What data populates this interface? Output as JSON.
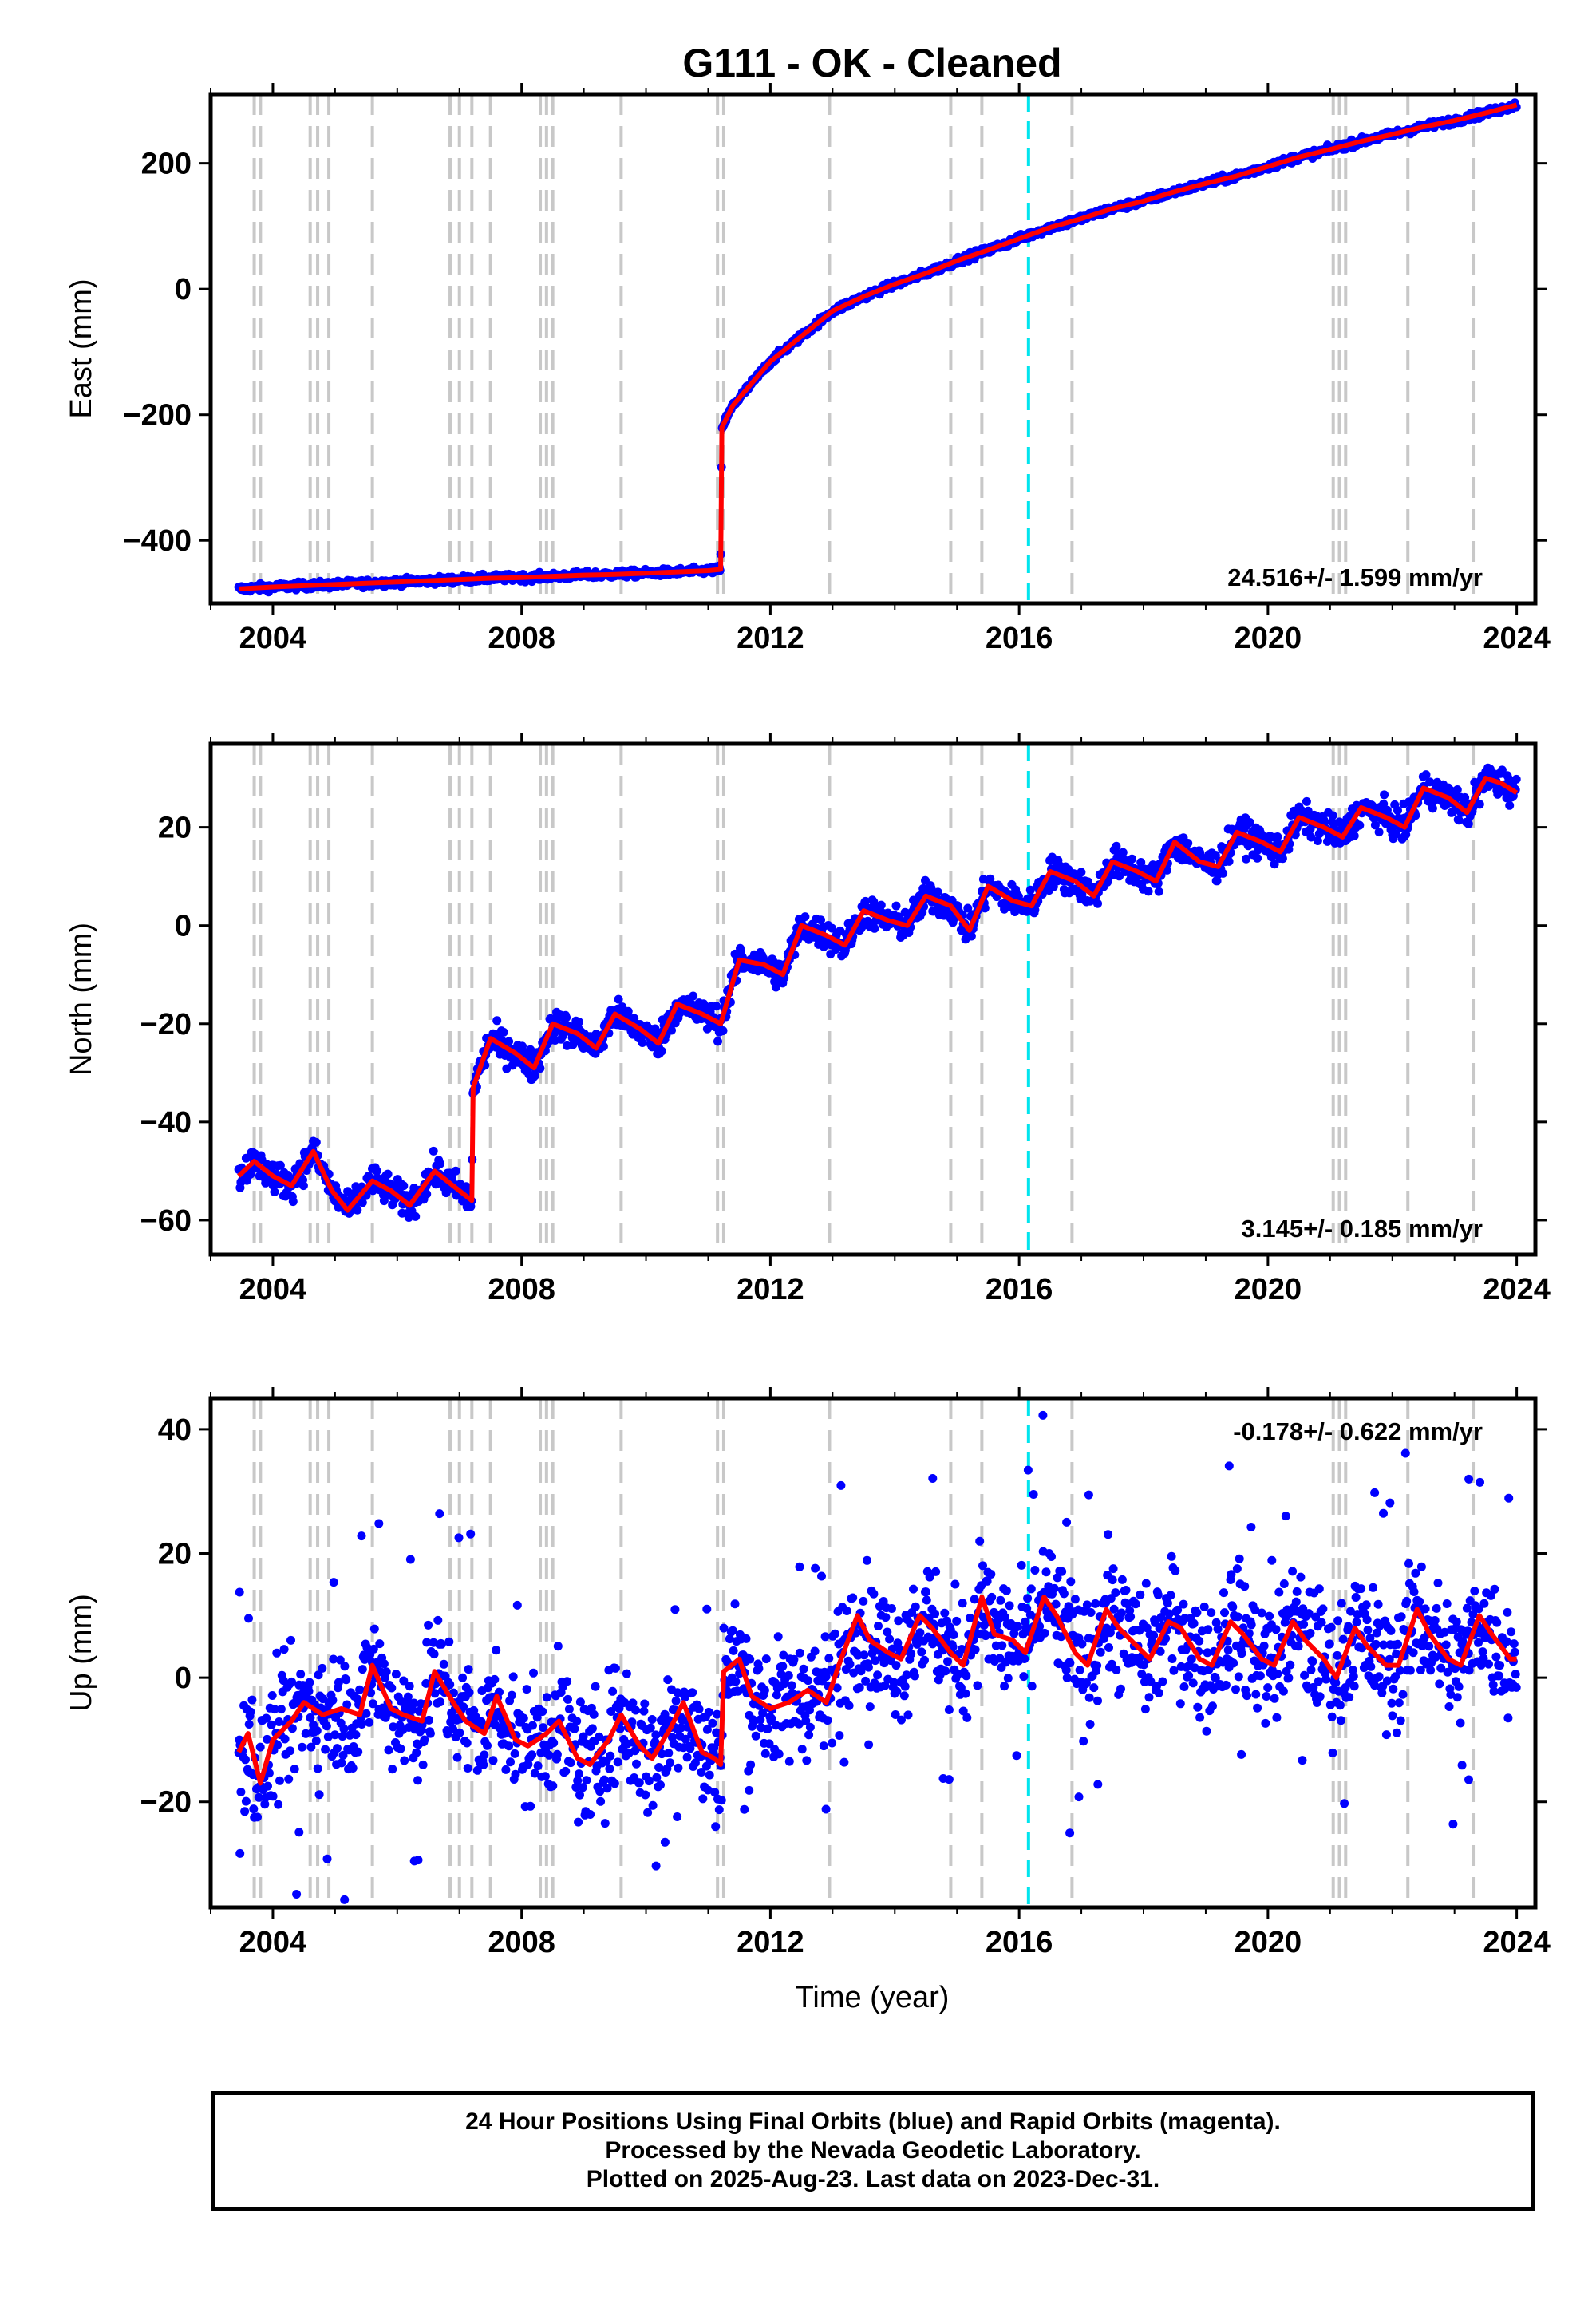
{
  "chart_data": [
    {
      "type": "scatter",
      "title": "G111  - OK - Cleaned",
      "ylabel": "East (mm)",
      "xlabel": "",
      "xlim": [
        2003.0,
        2024.3
      ],
      "ylim": [
        -500,
        310
      ],
      "xticks": [
        2004,
        2008,
        2012,
        2016,
        2020,
        2024
      ],
      "yticks": [
        -400,
        -200,
        0,
        200
      ],
      "yticklabels": [
        "−400",
        "−200",
        "0",
        "200"
      ],
      "rate_label": "24.516+/- 1.599 mm/yr",
      "rate_position": "bottom-right",
      "series": [
        {
          "role": "observations",
          "color": "#0000ff",
          "x": [
            2003.45,
            2004.0,
            2004.5,
            2005.0,
            2005.5,
            2006.0,
            2006.5,
            2007.0,
            2007.5,
            2008.0,
            2008.5,
            2009.0,
            2009.5,
            2010.0,
            2010.5,
            2011.0,
            2011.2,
            2011.22,
            2011.4,
            2011.7,
            2012.0,
            2012.5,
            2013.0,
            2013.5,
            2014.0,
            2014.5,
            2015.0,
            2015.5,
            2016.0,
            2016.5,
            2017.0,
            2017.5,
            2018.0,
            2018.5,
            2019.0,
            2019.5,
            2020.0,
            2020.5,
            2021.0,
            2021.5,
            2022.0,
            2022.5,
            2023.0,
            2023.5,
            2024.0
          ],
          "y": [
            -477,
            -474,
            -472,
            -470,
            -468,
            -466,
            -464,
            -462,
            -460,
            -459,
            -457,
            -455,
            -454,
            -452,
            -450,
            -448,
            -446,
            -220,
            -185,
            -150,
            -115,
            -75,
            -35,
            -12,
            8,
            25,
            45,
            62,
            80,
            98,
            112,
            128,
            140,
            155,
            168,
            180,
            195,
            210,
            222,
            235,
            246,
            258,
            268,
            280,
            293
          ]
        },
        {
          "role": "model",
          "color": "#ff0000",
          "x": [
            2003.45,
            2004.0,
            2004.5,
            2005.0,
            2005.5,
            2006.0,
            2006.5,
            2007.0,
            2007.5,
            2008.0,
            2008.5,
            2009.0,
            2009.5,
            2010.0,
            2010.5,
            2011.0,
            2011.2,
            2011.22,
            2011.4,
            2011.7,
            2012.0,
            2012.5,
            2013.0,
            2013.5,
            2014.0,
            2014.5,
            2015.0,
            2015.5,
            2016.0,
            2016.5,
            2017.0,
            2017.5,
            2018.0,
            2018.5,
            2019.0,
            2019.5,
            2020.0,
            2020.5,
            2021.0,
            2021.5,
            2022.0,
            2022.5,
            2023.0,
            2023.5,
            2024.0
          ],
          "y": [
            -477,
            -474,
            -472,
            -470,
            -468,
            -466,
            -464,
            -462,
            -460,
            -459,
            -457,
            -455,
            -454,
            -452,
            -450,
            -448,
            -446,
            -220,
            -185,
            -150,
            -115,
            -75,
            -35,
            -12,
            8,
            25,
            45,
            62,
            80,
            98,
            112,
            128,
            140,
            155,
            168,
            180,
            195,
            210,
            222,
            235,
            246,
            258,
            268,
            280,
            293
          ]
        }
      ]
    },
    {
      "type": "scatter",
      "title": "",
      "ylabel": "North (mm)",
      "xlabel": "",
      "xlim": [
        2003.0,
        2024.3
      ],
      "ylim": [
        -67,
        37
      ],
      "xticks": [
        2004,
        2008,
        2012,
        2016,
        2020,
        2024
      ],
      "yticks": [
        -60,
        -40,
        -20,
        0,
        20
      ],
      "yticklabels": [
        "−60",
        "−40",
        "−20",
        "0",
        "20"
      ],
      "rate_label": "3.145+/- 0.185 mm/yr",
      "rate_position": "bottom-right",
      "series": [
        {
          "role": "observations",
          "color": "#0000ff",
          "x": [
            2003.45,
            2003.7,
            2004.0,
            2004.3,
            2004.65,
            2004.95,
            2005.2,
            2005.6,
            2005.9,
            2006.2,
            2006.6,
            2006.9,
            2007.2,
            2007.22,
            2007.5,
            2007.9,
            2008.2,
            2008.5,
            2008.9,
            2009.2,
            2009.5,
            2009.9,
            2010.2,
            2010.5,
            2010.9,
            2011.2,
            2011.5,
            2011.9,
            2012.2,
            2012.5,
            2012.9,
            2013.2,
            2013.5,
            2013.9,
            2014.2,
            2014.5,
            2014.9,
            2015.2,
            2015.5,
            2015.9,
            2016.2,
            2016.5,
            2016.9,
            2017.2,
            2017.5,
            2017.9,
            2018.2,
            2018.5,
            2018.9,
            2019.2,
            2019.5,
            2019.9,
            2020.2,
            2020.5,
            2020.9,
            2021.2,
            2021.5,
            2021.9,
            2022.2,
            2022.5,
            2022.9,
            2023.2,
            2023.5,
            2023.75,
            2024.0
          ],
          "y": [
            -51,
            -48,
            -51,
            -53,
            -46,
            -54,
            -58,
            -52,
            -54,
            -57,
            -50,
            -53,
            -56,
            -33,
            -23,
            -26,
            -29,
            -20,
            -22,
            -25,
            -18,
            -21,
            -24,
            -16,
            -18,
            -20,
            -7,
            -8,
            -10,
            0,
            -2,
            -4,
            3,
            1,
            0,
            6,
            4,
            -1,
            8,
            5,
            4,
            11,
            9,
            6,
            13,
            11,
            9,
            17,
            13,
            12,
            19,
            17,
            15,
            22,
            20,
            18,
            24,
            22,
            20,
            28,
            26,
            23,
            30,
            29,
            27
          ]
        },
        {
          "role": "model",
          "color": "#ff0000",
          "x": [
            2003.45,
            2003.7,
            2004.0,
            2004.3,
            2004.65,
            2004.95,
            2005.2,
            2005.6,
            2005.9,
            2006.2,
            2006.6,
            2006.9,
            2007.2,
            2007.22,
            2007.5,
            2007.9,
            2008.2,
            2008.5,
            2008.9,
            2009.2,
            2009.5,
            2009.9,
            2010.2,
            2010.5,
            2010.9,
            2011.2,
            2011.5,
            2011.9,
            2012.2,
            2012.5,
            2012.9,
            2013.2,
            2013.5,
            2013.9,
            2014.2,
            2014.5,
            2014.9,
            2015.2,
            2015.5,
            2015.9,
            2016.2,
            2016.5,
            2016.9,
            2017.2,
            2017.5,
            2017.9,
            2018.2,
            2018.5,
            2018.9,
            2019.2,
            2019.5,
            2019.9,
            2020.2,
            2020.5,
            2020.9,
            2021.2,
            2021.5,
            2021.9,
            2022.2,
            2022.5,
            2022.9,
            2023.2,
            2023.5,
            2023.75,
            2024.0
          ],
          "y": [
            -51,
            -48,
            -51,
            -53,
            -46,
            -54,
            -58,
            -52,
            -54,
            -57,
            -50,
            -53,
            -56,
            -33,
            -23,
            -26,
            -29,
            -20,
            -22,
            -25,
            -18,
            -21,
            -24,
            -16,
            -18,
            -20,
            -7,
            -8,
            -10,
            0,
            -2,
            -4,
            3,
            1,
            0,
            6,
            4,
            -1,
            8,
            5,
            4,
            11,
            9,
            6,
            13,
            11,
            9,
            17,
            13,
            12,
            19,
            17,
            15,
            22,
            20,
            18,
            24,
            22,
            20,
            28,
            26,
            23,
            30,
            29,
            27
          ]
        }
      ]
    },
    {
      "type": "scatter",
      "title": "",
      "ylabel": "Up (mm)",
      "xlabel": "Time (year)",
      "xlim": [
        2003.0,
        2024.3
      ],
      "ylim": [
        -37,
        45
      ],
      "xticks": [
        2004,
        2008,
        2012,
        2016,
        2020,
        2024
      ],
      "yticks": [
        -20,
        0,
        20,
        40
      ],
      "yticklabels": [
        "−20",
        "0",
        "20",
        "40"
      ],
      "rate_label": "-0.178+/- 0.622 mm/yr",
      "rate_position": "top-right",
      "series": [
        {
          "role": "observations",
          "color": "#0000ff",
          "x": [
            2003.45,
            2003.6,
            2003.8,
            2004.0,
            2004.3,
            2004.5,
            2004.8,
            2005.1,
            2005.4,
            2005.6,
            2005.9,
            2006.1,
            2006.4,
            2006.6,
            2006.9,
            2007.1,
            2007.4,
            2007.6,
            2007.9,
            2008.1,
            2008.4,
            2008.6,
            2008.9,
            2009.1,
            2009.4,
            2009.6,
            2009.9,
            2010.1,
            2010.4,
            2010.6,
            2010.9,
            2011.1,
            2011.2,
            2011.25,
            2011.5,
            2011.7,
            2012.0,
            2012.3,
            2012.6,
            2012.9,
            2013.1,
            2013.4,
            2013.6,
            2013.9,
            2014.1,
            2014.4,
            2014.6,
            2014.9,
            2015.1,
            2015.4,
            2015.6,
            2015.9,
            2016.1,
            2016.4,
            2016.6,
            2016.9,
            2017.1,
            2017.4,
            2017.6,
            2017.9,
            2018.1,
            2018.4,
            2018.6,
            2018.9,
            2019.1,
            2019.4,
            2019.6,
            2019.9,
            2020.1,
            2020.4,
            2020.6,
            2020.9,
            2021.1,
            2021.4,
            2021.6,
            2021.9,
            2022.1,
            2022.4,
            2022.6,
            2022.9,
            2023.1,
            2023.4,
            2023.6,
            2023.9,
            2024.0
          ],
          "y": [
            -12,
            -9,
            -17,
            -10,
            -7,
            -4,
            -6,
            -5,
            -6,
            2,
            -5,
            -6,
            -7,
            1,
            -4,
            -7,
            -9,
            -3,
            -10,
            -11,
            -9,
            -7,
            -13,
            -14,
            -10,
            -6,
            -11,
            -13,
            -8,
            -4,
            -12,
            -13,
            -14,
            1,
            3,
            -3,
            -5,
            -4,
            -2,
            -4,
            2,
            10,
            6,
            4,
            3,
            10,
            8,
            4,
            2,
            13,
            7,
            6,
            4,
            13,
            10,
            4,
            2,
            11,
            8,
            5,
            3,
            9,
            8,
            3,
            2,
            9,
            7,
            3,
            2,
            9,
            6,
            3,
            0,
            8,
            5,
            2,
            2,
            11,
            7,
            3,
            2,
            10,
            7,
            3,
            3
          ]
        },
        {
          "role": "model",
          "color": "#ff0000",
          "x": [
            2003.45,
            2003.6,
            2003.8,
            2004.0,
            2004.3,
            2004.5,
            2004.8,
            2005.1,
            2005.4,
            2005.6,
            2005.9,
            2006.1,
            2006.4,
            2006.6,
            2006.9,
            2007.1,
            2007.4,
            2007.6,
            2007.9,
            2008.1,
            2008.4,
            2008.6,
            2008.9,
            2009.1,
            2009.4,
            2009.6,
            2009.9,
            2010.1,
            2010.4,
            2010.6,
            2010.9,
            2011.1,
            2011.2,
            2011.25,
            2011.5,
            2011.7,
            2012.0,
            2012.3,
            2012.6,
            2012.9,
            2013.1,
            2013.4,
            2013.6,
            2013.9,
            2014.1,
            2014.4,
            2014.6,
            2014.9,
            2015.1,
            2015.4,
            2015.6,
            2015.9,
            2016.1,
            2016.4,
            2016.6,
            2016.9,
            2017.1,
            2017.4,
            2017.6,
            2017.9,
            2018.1,
            2018.4,
            2018.6,
            2018.9,
            2019.1,
            2019.4,
            2019.6,
            2019.9,
            2020.1,
            2020.4,
            2020.6,
            2020.9,
            2021.1,
            2021.4,
            2021.6,
            2021.9,
            2022.1,
            2022.4,
            2022.6,
            2022.9,
            2023.1,
            2023.4,
            2023.6,
            2023.9,
            2024.0
          ],
          "y": [
            -12,
            -9,
            -17,
            -10,
            -7,
            -4,
            -6,
            -5,
            -6,
            2,
            -5,
            -6,
            -7,
            1,
            -4,
            -7,
            -9,
            -3,
            -10,
            -11,
            -9,
            -7,
            -13,
            -14,
            -10,
            -6,
            -11,
            -13,
            -8,
            -4,
            -12,
            -13,
            -14,
            1,
            3,
            -3,
            -5,
            -4,
            -2,
            -4,
            2,
            10,
            6,
            4,
            3,
            10,
            8,
            4,
            2,
            13,
            7,
            6,
            4,
            13,
            10,
            4,
            2,
            11,
            8,
            5,
            3,
            9,
            8,
            3,
            2,
            9,
            7,
            3,
            2,
            9,
            6,
            3,
            0,
            8,
            5,
            2,
            2,
            11,
            7,
            3,
            2,
            10,
            7,
            3,
            3
          ]
        }
      ]
    }
  ],
  "offset_lines": {
    "gray_dates": [
      2003.7,
      2003.8,
      2004.6,
      2004.72,
      2004.9,
      2005.6,
      2006.85,
      2007.0,
      2007.2,
      2007.5,
      2008.3,
      2008.4,
      2008.5,
      2009.6,
      2011.15,
      2011.25,
      2012.95,
      2014.9,
      2015.4,
      2016.85,
      2021.05,
      2021.15,
      2021.25,
      2022.25,
      2023.3
    ],
    "cyan_dates": [
      2016.15
    ],
    "gray_color": "#c8c8c8",
    "cyan_color": "#00e5ee"
  },
  "caption": {
    "line1": "24 Hour Positions Using Final Orbits (blue) and Rapid Orbits (magenta).",
    "line2": "Processed by the Nevada Geodetic Laboratory.",
    "line3": "Plotted on 2025-Aug-23. Last data on 2023-Dec-31."
  }
}
